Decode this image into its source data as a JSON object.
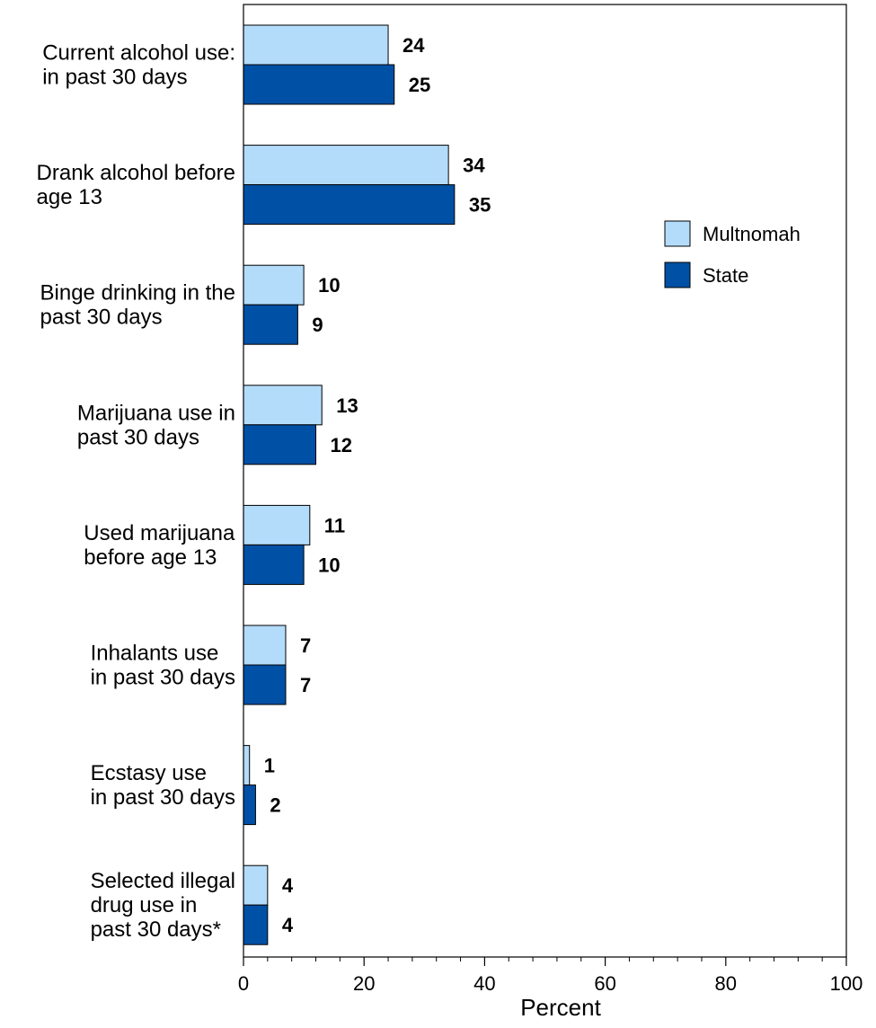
{
  "chart_data": {
    "type": "bar",
    "orientation": "horizontal",
    "categories": [
      [
        "Current alcohol use:",
        "in past 30 days"
      ],
      [
        "Drank alcohol before",
        "age 13"
      ],
      [
        "Binge drinking in the",
        "past 30 days"
      ],
      [
        "Marijuana use in",
        "past 30 days"
      ],
      [
        "Used marijuana",
        "before age 13"
      ],
      [
        "Inhalants use",
        "in past 30 days"
      ],
      [
        "Ecstasy use",
        "in past 30 days"
      ],
      [
        "Selected illegal",
        "drug use in",
        "past 30 days*"
      ]
    ],
    "series": [
      {
        "name": "Multnomah",
        "color": "#b3dcfb",
        "values": [
          24,
          34,
          10,
          13,
          11,
          7,
          1,
          4
        ]
      },
      {
        "name": "State",
        "color": "#0050a5",
        "values": [
          25,
          35,
          9,
          12,
          10,
          7,
          2,
          4
        ]
      }
    ],
    "xlabel": "Percent",
    "xlim": [
      0,
      100
    ],
    "xticks": [
      "0",
      "20",
      "40",
      "60",
      "80",
      "100"
    ],
    "legend_position": "right",
    "grid": false
  }
}
